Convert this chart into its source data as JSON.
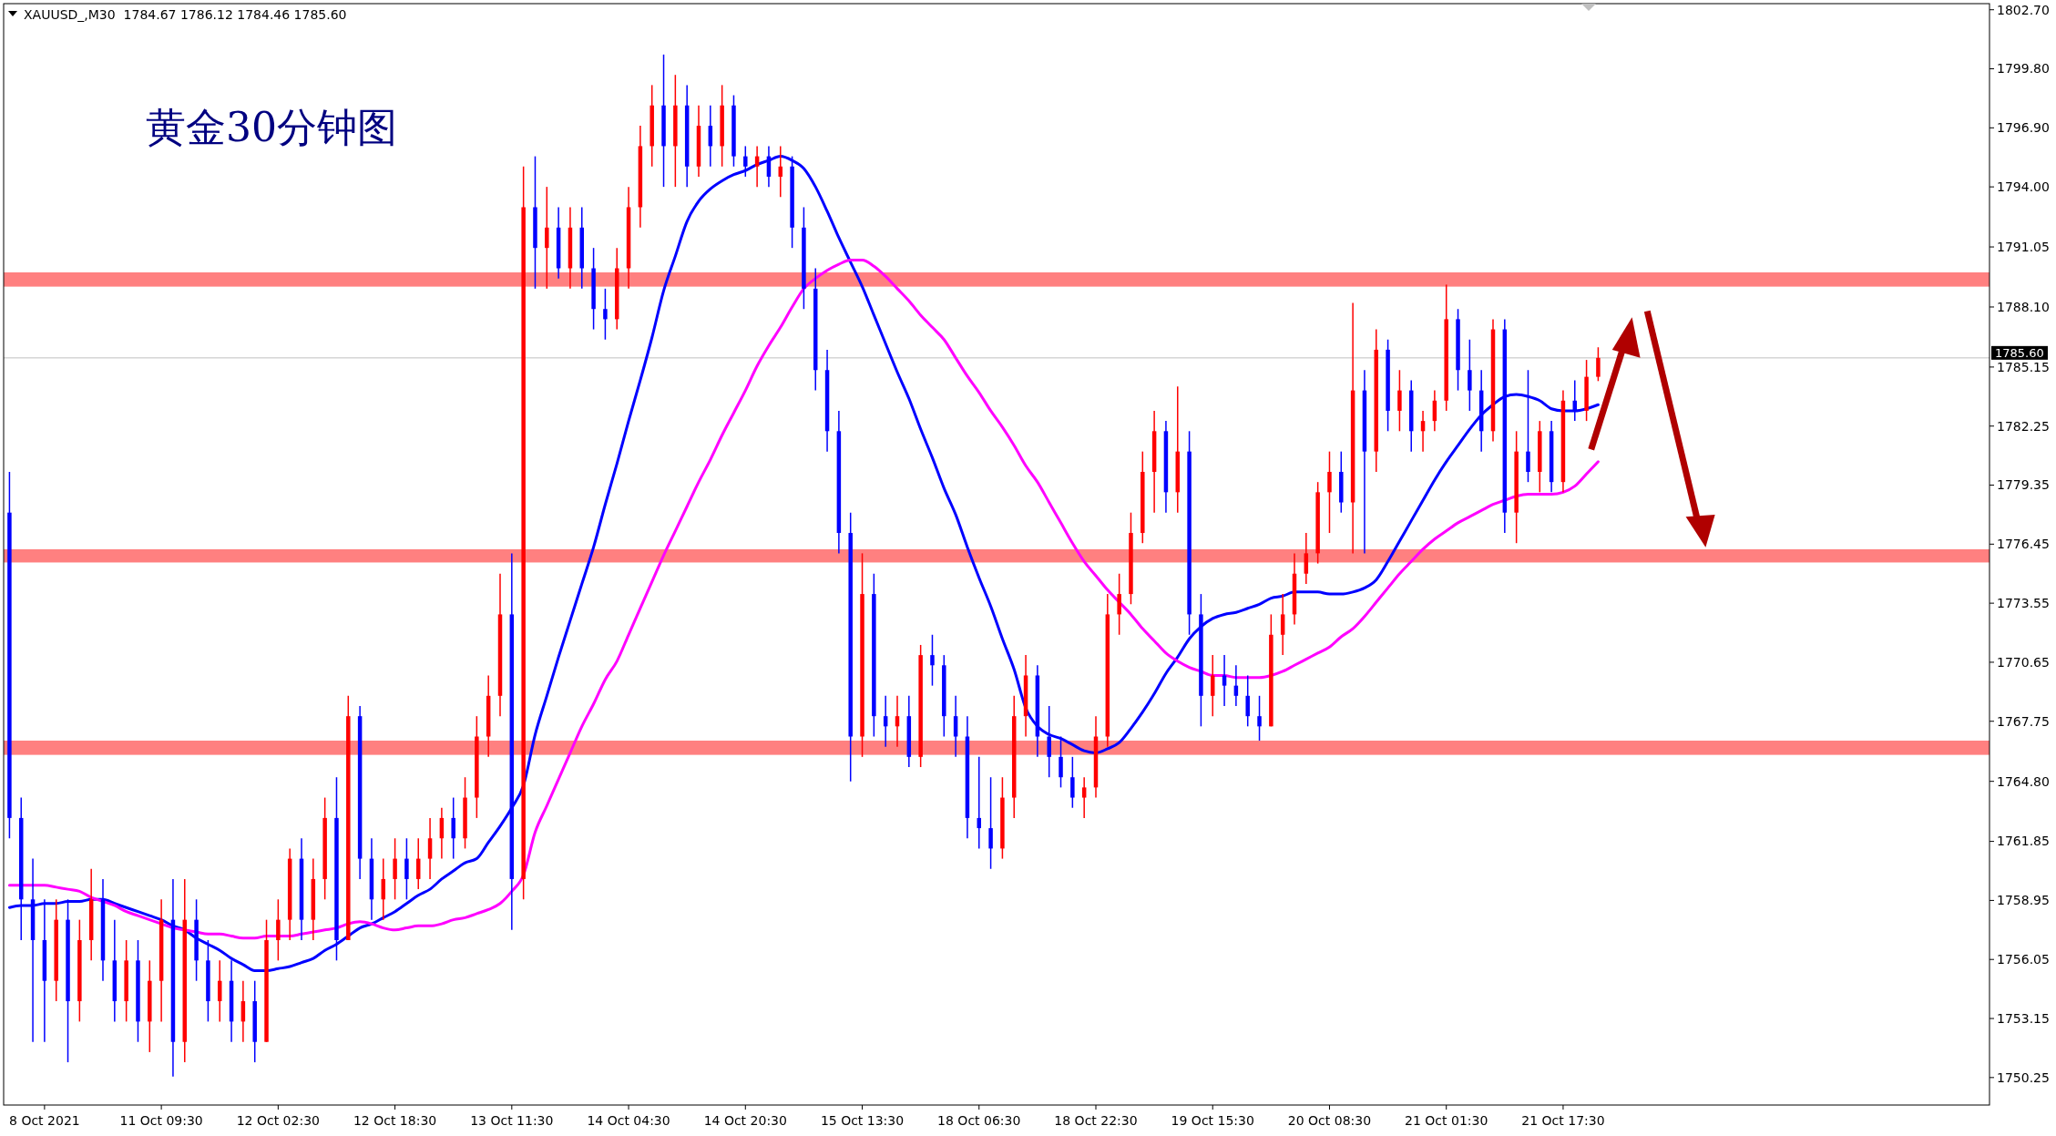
{
  "chart_data": {
    "type": "candlestick",
    "title": "XAUUSD_,M30  1784.67 1786.12 1784.46 1785.60",
    "subtitle": "黄金30分钟图",
    "categories": [
      null,
      null,
      null,
      "8 Oct 2021",
      null,
      null,
      null,
      null,
      null,
      null,
      null,
      null,
      null,
      "11 Oct 09:30",
      null,
      null,
      null,
      null,
      null,
      null,
      null,
      null,
      null,
      "12 Oct 02:30",
      null,
      null,
      null,
      null,
      null,
      null,
      null,
      null,
      null,
      "12 Oct 18:30",
      null,
      null,
      null,
      null,
      null,
      null,
      null,
      null,
      null,
      "13 Oct 11:30",
      null,
      null,
      null,
      null,
      null,
      null,
      null,
      null,
      null,
      "14 Oct 04:30",
      null,
      null,
      null,
      null,
      null,
      null,
      null,
      null,
      null,
      "14 Oct 20:30",
      null,
      null,
      null,
      null,
      null,
      null,
      null,
      null,
      null,
      "15 Oct 13:30",
      null,
      null,
      null,
      null,
      null,
      null,
      null,
      null,
      null,
      "18 Oct 06:30",
      null,
      null,
      null,
      null,
      null,
      null,
      null,
      null,
      null,
      "18 Oct 22:30",
      null,
      null,
      null,
      null,
      null,
      null,
      null,
      null,
      null,
      "19 Oct 15:30",
      null,
      null,
      null,
      null,
      null,
      null,
      null,
      null,
      null,
      "20 Oct 08:30",
      null,
      null,
      null,
      null,
      null,
      null,
      null,
      null,
      null,
      "21 Oct 01:30",
      null,
      null,
      null,
      null,
      null,
      null,
      null,
      null,
      null,
      "21 Oct 17:30",
      null,
      null,
      null,
      null,
      null,
      null,
      null,
      null,
      null,
      null,
      null,
      null,
      null,
      null,
      null,
      null,
      null,
      null,
      null,
      null,
      null,
      null,
      null,
      null,
      null,
      null,
      null,
      null,
      null,
      null,
      null,
      null,
      null,
      null,
      null,
      null
    ],
    "ohlc": [
      [
        1778,
        1780,
        1762,
        1763
      ],
      [
        1763,
        1764,
        1757,
        1759
      ],
      [
        1759,
        1761,
        1752,
        1757
      ],
      [
        1757,
        1759,
        1752,
        1755
      ],
      [
        1755,
        1759,
        1754,
        1758
      ],
      [
        1758,
        1759,
        1751,
        1754
      ],
      [
        1754,
        1758,
        1753,
        1757
      ],
      [
        1757,
        1760.5,
        1756,
        1759
      ],
      [
        1759,
        1760,
        1755,
        1756
      ],
      [
        1756,
        1758,
        1753,
        1754
      ],
      [
        1754,
        1757,
        1753,
        1756
      ],
      [
        1756,
        1757,
        1752,
        1753
      ],
      [
        1753,
        1756,
        1751.5,
        1755
      ],
      [
        1755,
        1759,
        1753,
        1758
      ],
      [
        1758,
        1760,
        1750.3,
        1752
      ],
      [
        1752,
        1760,
        1751,
        1758
      ],
      [
        1758,
        1759,
        1755,
        1756
      ],
      [
        1756,
        1757,
        1753,
        1754
      ],
      [
        1754,
        1756,
        1753,
        1755
      ],
      [
        1755,
        1756,
        1752,
        1753
      ],
      [
        1753,
        1755,
        1752,
        1754
      ],
      [
        1754,
        1755,
        1751,
        1752
      ],
      [
        1752,
        1758,
        1752,
        1757
      ],
      [
        1757,
        1759,
        1756,
        1758
      ],
      [
        1758,
        1761.5,
        1757,
        1761
      ],
      [
        1761,
        1762,
        1757,
        1758
      ],
      [
        1758,
        1761,
        1757,
        1760
      ],
      [
        1760,
        1764,
        1759,
        1763
      ],
      [
        1763,
        1765,
        1756,
        1757
      ],
      [
        1757,
        1769,
        1757,
        1768
      ],
      [
        1768,
        1768.5,
        1760,
        1761
      ],
      [
        1761,
        1762,
        1758,
        1759
      ],
      [
        1759,
        1761,
        1758,
        1760
      ],
      [
        1760,
        1762,
        1759,
        1761
      ],
      [
        1761,
        1762,
        1759,
        1760
      ],
      [
        1760,
        1762,
        1759.5,
        1761
      ],
      [
        1761,
        1763,
        1760,
        1762
      ],
      [
        1762,
        1763.5,
        1761,
        1763
      ],
      [
        1763,
        1764,
        1761,
        1762
      ],
      [
        1762,
        1765,
        1761.5,
        1764
      ],
      [
        1764,
        1768,
        1763,
        1767
      ],
      [
        1767,
        1770,
        1766,
        1769
      ],
      [
        1769,
        1775,
        1768,
        1773
      ],
      [
        1773,
        1776,
        1757.5,
        1760
      ],
      [
        1760,
        1795,
        1759,
        1793
      ],
      [
        1793,
        1795.5,
        1789,
        1791
      ],
      [
        1791,
        1794,
        1789,
        1792
      ],
      [
        1792,
        1793,
        1789.5,
        1790
      ],
      [
        1790,
        1793,
        1789,
        1792
      ],
      [
        1792,
        1793,
        1789,
        1790
      ],
      [
        1790,
        1791,
        1787,
        1788
      ],
      [
        1788,
        1789,
        1786.5,
        1787.5
      ],
      [
        1787.5,
        1791,
        1787,
        1790
      ],
      [
        1790,
        1794,
        1789,
        1793
      ],
      [
        1793,
        1797,
        1792,
        1796
      ],
      [
        1796,
        1799,
        1795,
        1798
      ],
      [
        1798,
        1800.5,
        1794,
        1796
      ],
      [
        1796,
        1799.5,
        1794,
        1798
      ],
      [
        1798,
        1799,
        1794,
        1795
      ],
      [
        1795,
        1798,
        1794.5,
        1797
      ],
      [
        1797,
        1798,
        1795,
        1796
      ],
      [
        1796,
        1799,
        1795,
        1798
      ],
      [
        1798,
        1798.5,
        1795,
        1795.5
      ],
      [
        1795.5,
        1796,
        1794.5,
        1795
      ],
      [
        1795,
        1796,
        1794,
        1795.5
      ],
      [
        1795.5,
        1796,
        1794,
        1794.5
      ],
      [
        1794.5,
        1796,
        1793.5,
        1795
      ],
      [
        1795,
        1795.5,
        1791,
        1792
      ],
      [
        1792,
        1793,
        1788,
        1789
      ],
      [
        1789,
        1790,
        1784,
        1785
      ],
      [
        1785,
        1786,
        1781,
        1782
      ],
      [
        1782,
        1783,
        1776,
        1777
      ],
      [
        1777,
        1778,
        1764.8,
        1767
      ],
      [
        1767,
        1776,
        1766,
        1774
      ],
      [
        1774,
        1775,
        1767,
        1768
      ],
      [
        1768,
        1769,
        1766.5,
        1767.5
      ],
      [
        1767.5,
        1769,
        1766.5,
        1768
      ],
      [
        1768,
        1769,
        1765.5,
        1766
      ],
      [
        1766,
        1771.5,
        1765.5,
        1771
      ],
      [
        1771,
        1772,
        1769.5,
        1770.5
      ],
      [
        1770.5,
        1771,
        1767,
        1768
      ],
      [
        1768,
        1769,
        1766,
        1767
      ],
      [
        1767,
        1768,
        1762,
        1763
      ],
      [
        1763,
        1766,
        1761.5,
        1762.5
      ],
      [
        1762.5,
        1765,
        1760.5,
        1761.5
      ],
      [
        1761.5,
        1765,
        1761,
        1764
      ],
      [
        1764,
        1769,
        1763,
        1768
      ],
      [
        1768,
        1771,
        1767,
        1770
      ],
      [
        1770,
        1770.5,
        1766,
        1767
      ],
      [
        1767,
        1768.5,
        1765,
        1766
      ],
      [
        1766,
        1767,
        1764.5,
        1765
      ],
      [
        1765,
        1766,
        1763.5,
        1764
      ],
      [
        1764,
        1765,
        1763,
        1764.5
      ],
      [
        1764.5,
        1768,
        1764,
        1767
      ],
      [
        1767,
        1774,
        1766.5,
        1773
      ],
      [
        1773,
        1775,
        1772,
        1774
      ],
      [
        1774,
        1778,
        1773.5,
        1777
      ],
      [
        1777,
        1781,
        1776.5,
        1780
      ],
      [
        1780,
        1783,
        1778,
        1782
      ],
      [
        1782,
        1782.5,
        1778,
        1779
      ],
      [
        1779,
        1784.2,
        1778,
        1781
      ],
      [
        1781,
        1782,
        1772,
        1773
      ],
      [
        1773,
        1774,
        1767.5,
        1769
      ],
      [
        1769,
        1771,
        1768,
        1770
      ],
      [
        1770,
        1771,
        1768.5,
        1769.5
      ],
      [
        1769.5,
        1770.5,
        1768.5,
        1769
      ],
      [
        1769,
        1770,
        1767.5,
        1768
      ],
      [
        1768,
        1769,
        1766.8,
        1767.5
      ],
      [
        1767.5,
        1773,
        1767.5,
        1772
      ],
      [
        1772,
        1774,
        1771,
        1773
      ],
      [
        1773,
        1776,
        1772.5,
        1775
      ],
      [
        1775,
        1777,
        1774.5,
        1776
      ],
      [
        1776,
        1779.5,
        1775.5,
        1779
      ],
      [
        1779,
        1781,
        1777,
        1780
      ],
      [
        1780,
        1781,
        1778,
        1778.5
      ],
      [
        1778.5,
        1788.3,
        1776,
        1784
      ],
      [
        1784,
        1785,
        1776,
        1781
      ],
      [
        1781,
        1787,
        1780,
        1786
      ],
      [
        1786,
        1786.5,
        1782,
        1783
      ],
      [
        1783,
        1785,
        1782,
        1784
      ],
      [
        1784,
        1784.5,
        1781,
        1782
      ],
      [
        1782,
        1783,
        1781,
        1782.5
      ],
      [
        1782.5,
        1784,
        1782,
        1783.5
      ],
      [
        1783.5,
        1789.2,
        1783,
        1787.5
      ],
      [
        1787.5,
        1788,
        1784,
        1785
      ],
      [
        1785,
        1786.5,
        1783,
        1784
      ],
      [
        1784,
        1785,
        1781,
        1782
      ],
      [
        1782,
        1787.5,
        1781.5,
        1787
      ],
      [
        1787,
        1787.5,
        1777,
        1778
      ],
      [
        1778,
        1782,
        1776.5,
        1781
      ],
      [
        1781,
        1785,
        1779.5,
        1780
      ],
      [
        1780,
        1782.5,
        1779,
        1782
      ],
      [
        1782,
        1782.5,
        1779,
        1779.5
      ],
      [
        1779.5,
        1784,
        1779,
        1783.5
      ],
      [
        1783.5,
        1784.5,
        1782.5,
        1783
      ],
      [
        1783,
        1785.5,
        1782.5,
        1784.67
      ],
      [
        1784.67,
        1786.12,
        1784.46,
        1785.6
      ],
      null,
      null,
      null,
      null,
      null,
      null,
      null,
      null,
      null,
      null,
      null,
      null,
      null,
      null,
      null,
      null,
      null,
      null,
      null,
      null,
      null,
      null,
      null,
      null,
      null,
      null,
      null,
      null,
      null,
      null,
      null,
      null,
      null
    ],
    "colors": [
      "#0000ff",
      "#0000ff",
      "#0000ff",
      "#0000ff",
      "#ff0000",
      "#0000ff",
      "#ff0000",
      "#ff0000",
      "#0000ff",
      "#0000ff",
      "#ff0000",
      "#0000ff",
      "#ff0000",
      "#ff0000",
      "#0000ff",
      "#ff0000",
      "#0000ff",
      "#0000ff",
      "#ff0000",
      "#0000ff",
      "#ff0000",
      "#0000ff",
      "#ff0000",
      "#ff0000",
      "#ff0000",
      "#0000ff",
      "#ff0000",
      "#ff0000",
      "#0000ff",
      "#ff0000",
      "#0000ff",
      "#0000ff",
      "#ff0000",
      "#ff0000",
      "#0000ff",
      "#ff0000",
      "#ff0000",
      "#ff0000",
      "#0000ff",
      "#ff0000",
      "#ff0000",
      "#ff0000",
      "#ff0000",
      "#0000ff",
      "#ff0000",
      "#0000ff",
      "#ff0000",
      "#0000ff",
      "#ff0000",
      "#0000ff",
      "#0000ff",
      "#0000ff",
      "#ff0000",
      "#ff0000",
      "#ff0000",
      "#ff0000",
      "#0000ff",
      "#ff0000",
      "#0000ff",
      "#ff0000",
      "#0000ff",
      "#ff0000",
      "#0000ff",
      "#0000ff",
      "#ff0000",
      "#0000ff",
      "#ff0000",
      "#0000ff",
      "#0000ff",
      "#0000ff",
      "#0000ff",
      "#0000ff",
      "#0000ff",
      "#ff0000",
      "#0000ff",
      "#0000ff",
      "#ff0000",
      "#0000ff",
      "#ff0000",
      "#0000ff",
      "#0000ff",
      "#0000ff",
      "#0000ff",
      "#0000ff",
      "#0000ff",
      "#ff0000",
      "#ff0000",
      "#ff0000",
      "#0000ff",
      "#0000ff",
      "#0000ff",
      "#0000ff",
      "#ff0000",
      "#ff0000",
      "#ff0000",
      "#ff0000",
      "#ff0000",
      "#ff0000",
      "#ff0000",
      "#0000ff",
      "#ff0000",
      "#0000ff",
      "#0000ff",
      "#ff0000",
      "#0000ff",
      "#0000ff",
      "#0000ff",
      "#0000ff",
      "#ff0000",
      "#ff0000",
      "#ff0000",
      "#ff0000",
      "#ff0000",
      "#ff0000",
      "#0000ff",
      "#ff0000",
      "#0000ff",
      "#ff0000",
      "#0000ff",
      "#ff0000",
      "#0000ff",
      "#ff0000",
      "#ff0000",
      "#ff0000",
      "#0000ff",
      "#0000ff",
      "#0000ff",
      "#ff0000",
      "#0000ff",
      "#ff0000",
      "#0000ff",
      "#ff0000",
      "#0000ff",
      "#ff0000",
      "#0000ff",
      "#ff0000",
      "#ff0000",
      null,
      null,
      null,
      null,
      null,
      null,
      null,
      null,
      null,
      null,
      null,
      null,
      null,
      null,
      null,
      null,
      null,
      null,
      null,
      null,
      null,
      null,
      null,
      null,
      null,
      null,
      null,
      null,
      null,
      null,
      null,
      null,
      null
    ],
    "series": [
      {
        "type": "line",
        "color": "#0000ff",
        "values": [
          1758.6,
          1758.7,
          1758.7,
          1758.8,
          1758.8,
          1758.9,
          1758.9,
          1759.0,
          1759.0,
          1758.8,
          1758.6,
          1758.4,
          1758.2,
          1758.0,
          1757.7,
          1757.5,
          1757.1,
          1756.8,
          1756.5,
          1756.1,
          1755.8,
          1755.5,
          1755.5,
          1755.6,
          1755.7,
          1755.9,
          1756.1,
          1756.5,
          1756.8,
          1757.2,
          1757.6,
          1757.8,
          1758.1,
          1758.4,
          1758.8,
          1759.2,
          1759.5,
          1760.0,
          1760.4,
          1760.8,
          1761.0,
          1761.8,
          1762.6,
          1763.5,
          1764.6,
          1767.1,
          1769.0,
          1770.9,
          1772.7,
          1774.5,
          1776.3,
          1778.4,
          1780.4,
          1782.5,
          1784.5,
          1786.6,
          1788.9,
          1790.6,
          1792.3,
          1793.3,
          1793.9,
          1794.3,
          1794.6,
          1794.8,
          1795.1,
          1795.3,
          1795.5,
          1795.3,
          1794.9,
          1794.0,
          1792.8,
          1791.5,
          1790.3,
          1789.1,
          1787.7,
          1786.3,
          1784.9,
          1783.6,
          1782.1,
          1780.7,
          1779.2,
          1777.9,
          1776.3,
          1774.8,
          1773.4,
          1771.8,
          1770.3,
          1768.4,
          1767.5,
          1767.1,
          1766.9,
          1766.6,
          1766.3,
          1766.2,
          1766.4,
          1766.7,
          1767.4,
          1768.2,
          1769.1,
          1770.1,
          1770.9,
          1771.8,
          1772.4,
          1772.8,
          1773.0,
          1773.1,
          1773.3,
          1773.5,
          1773.8,
          1773.9,
          1774.1,
          1774.1,
          1774.1,
          1774.0,
          1774.0,
          1774.1,
          1774.3,
          1774.7,
          1775.6,
          1776.6,
          1777.6,
          1778.6,
          1779.6,
          1780.5,
          1781.3,
          1782.1,
          1782.8,
          1783.3,
          1783.7,
          1783.8,
          1783.7,
          1783.5,
          1783.1,
          1783.0,
          1783.0,
          1783.1,
          1783.3,
          null,
          null,
          null,
          null,
          null,
          null,
          null,
          null,
          null,
          null,
          null,
          null,
          null,
          null,
          null,
          null,
          null,
          null,
          null,
          null,
          null,
          null,
          null,
          null,
          null,
          null,
          null,
          null,
          null,
          null,
          null,
          null,
          null
        ]
      },
      {
        "type": "line",
        "color": "#ff00ff",
        "values": [
          1759.7,
          1759.7,
          1759.7,
          1759.7,
          1759.6,
          1759.5,
          1759.4,
          1759.1,
          1758.9,
          1758.7,
          1758.4,
          1758.2,
          1758.0,
          1757.8,
          1757.6,
          1757.5,
          1757.4,
          1757.3,
          1757.3,
          1757.2,
          1757.1,
          1757.1,
          1757.2,
          1757.2,
          1757.2,
          1757.3,
          1757.4,
          1757.5,
          1757.6,
          1757.8,
          1757.9,
          1757.8,
          1757.6,
          1757.5,
          1757.6,
          1757.7,
          1757.7,
          1757.8,
          1758.0,
          1758.1,
          1758.3,
          1758.5,
          1758.8,
          1759.4,
          1760.2,
          1762.3,
          1763.6,
          1764.9,
          1766.2,
          1767.5,
          1768.6,
          1769.8,
          1770.7,
          1772.0,
          1773.3,
          1774.6,
          1775.9,
          1777.1,
          1778.3,
          1779.5,
          1780.6,
          1781.8,
          1782.9,
          1784.0,
          1785.2,
          1786.2,
          1787.1,
          1788.1,
          1789.0,
          1789.5,
          1789.9,
          1790.2,
          1790.4,
          1790.4,
          1790.1,
          1789.6,
          1789.0,
          1788.4,
          1787.7,
          1787.1,
          1786.5,
          1785.6,
          1784.7,
          1783.9,
          1783.0,
          1782.2,
          1781.3,
          1780.3,
          1779.5,
          1778.5,
          1777.5,
          1776.5,
          1775.6,
          1774.9,
          1774.2,
          1773.6,
          1773.0,
          1772.3,
          1771.7,
          1771.1,
          1770.7,
          1770.4,
          1770.2,
          1770.0,
          1770.0,
          1769.9,
          1769.9,
          1769.9,
          1770.0,
          1770.2,
          1770.5,
          1770.8,
          1771.1,
          1771.4,
          1771.9,
          1772.3,
          1772.9,
          1773.6,
          1774.3,
          1775.0,
          1775.6,
          1776.2,
          1776.7,
          1777.1,
          1777.5,
          1777.8,
          1778.1,
          1778.4,
          1778.6,
          1778.8,
          1778.9,
          1778.9,
          1778.9,
          1779.0,
          1779.3,
          1779.9,
          1780.5,
          null,
          null,
          null,
          null,
          null,
          null,
          null,
          null,
          null,
          null,
          null,
          null,
          null,
          null,
          null,
          null,
          null,
          null,
          null,
          null,
          null,
          null,
          null,
          null,
          null,
          null,
          null,
          null,
          null,
          null,
          null,
          null,
          null
        ]
      }
    ],
    "ylim": [
      1748.9,
      1803.0
    ],
    "yticks": [
      1750.25,
      1753.15,
      1756.05,
      1758.95,
      1761.85,
      {
        "value": 1764.8,
        "label": "1764.80"
      },
      1767.75,
      1770.65,
      1773.55,
      1776.45,
      1779.35,
      1782.25,
      1785.15,
      {
        "value": 1788.1,
        "label": "1788.10"
      },
      1791.05,
      {
        "value": 1794,
        "label": "1794.00"
      },
      {
        "value": 1796.9,
        "label": "1796.90"
      },
      {
        "value": 1799.8,
        "label": "1799.80"
      },
      {
        "value": 1802.7,
        "label": "1802.70"
      }
    ],
    "ref_lines": [
      {
        "axis": "y",
        "value": 1785.6,
        "label": "1785.60",
        "color": "#c0c0c0"
      }
    ],
    "bands": [
      {
        "axis": "y",
        "from": 1789.1,
        "to": 1789.8,
        "color": "#ff8080"
      },
      {
        "axis": "y",
        "from": 1775.55,
        "to": 1776.2,
        "color": "#ff8080"
      },
      {
        "axis": "y",
        "from": 1766.1,
        "to": 1766.8,
        "color": "#ff8080"
      }
    ]
  }
}
